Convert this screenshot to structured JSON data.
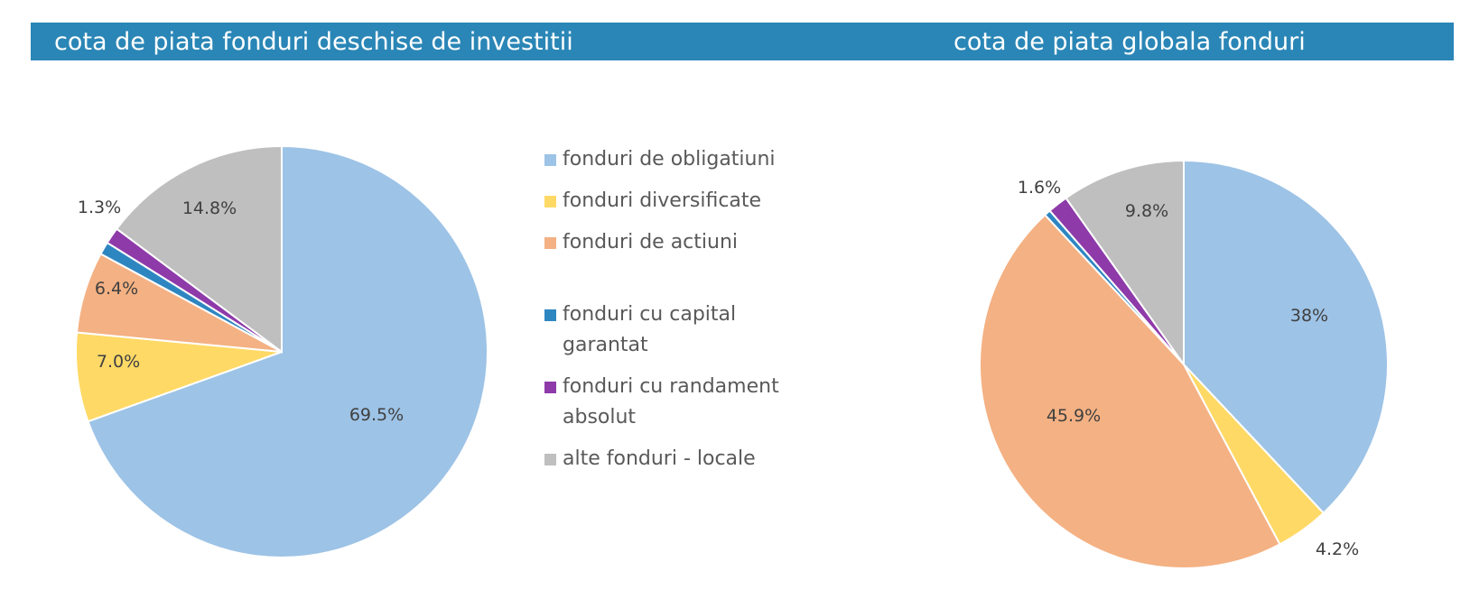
{
  "header": {
    "left_title": "cota de piata fonduri deschise de investitii",
    "right_title": "cota de piata globala fonduri"
  },
  "legend": {
    "items": [
      {
        "label": "fonduri de obligatiuni",
        "color": "#9dc3e6"
      },
      {
        "label": "fonduri diversificate",
        "color": "#ffd966"
      },
      {
        "label": "fonduri de actiuni",
        "color": "#f4b183"
      },
      {
        "label": "fonduri cu capital garantat",
        "color": "#2e86c1"
      },
      {
        "label": "fonduri cu randament absolut",
        "color": "#8e3aa9"
      },
      {
        "label": "alte fonduri - locale",
        "color": "#bfbfbf"
      }
    ]
  },
  "chart_data": [
    {
      "type": "pie",
      "title": "cota de piata fonduri deschise de investitii",
      "categories": [
        "fonduri de obligatiuni",
        "fonduri diversificate",
        "fonduri de actiuni",
        "fonduri cu capital garantat",
        "fonduri cu randament absolut",
        "alte fonduri - locale"
      ],
      "values": [
        69.5,
        7.0,
        6.4,
        1.0,
        1.3,
        14.8
      ],
      "data_labels": [
        "69.5%",
        "7.0%",
        "6.4%",
        "",
        "1.3%",
        "14.8%"
      ],
      "colors": [
        "#9dc3e6",
        "#ffd966",
        "#f4b183",
        "#2e86c1",
        "#8e3aa9",
        "#bfbfbf"
      ]
    },
    {
      "type": "pie",
      "title": "cota de piata globala fonduri",
      "categories": [
        "fonduri de obligatiuni",
        "fonduri diversificate",
        "fonduri de actiuni",
        "fonduri cu capital garantat",
        "fonduri cu randament absolut",
        "alte fonduri - locale"
      ],
      "values": [
        38,
        4.2,
        45.9,
        0.5,
        1.6,
        9.8
      ],
      "data_labels": [
        "38%",
        "4.2%",
        "45.9%",
        "",
        "1.6%",
        "9.8%"
      ],
      "colors": [
        "#9dc3e6",
        "#ffd966",
        "#f4b183",
        "#2e86c1",
        "#8e3aa9",
        "#bfbfbf"
      ]
    }
  ]
}
